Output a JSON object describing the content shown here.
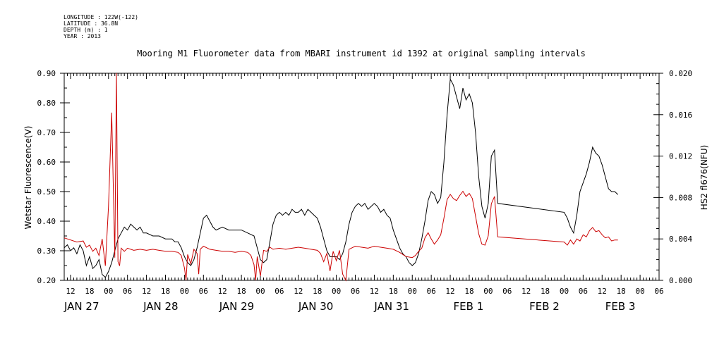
{
  "meta": {
    "longitude": "LONGITUDE : 122W(-122)",
    "latitude": "LATITUDE : 36.8N",
    "depth": "DEPTH (m) : 1",
    "year": "YEAR : 2013"
  },
  "colors": {
    "series1": "#000000",
    "series2": "#cc0000",
    "axis": "#000000"
  },
  "chart_data": {
    "type": "line",
    "title": "Mooring M1 Fluorometer data from MBARI instrument id 1392 at original sampling intervals",
    "ylabel": "Wetstar Fluorescence(V)",
    "y2label": "HS2 fl676(NFU)",
    "xlim": [
      10,
      198
    ],
    "ylim": [
      0.2,
      0.9
    ],
    "y2lim": [
      0.0,
      0.02
    ],
    "x_units": "hours since JAN 27 00:00, 2013",
    "xtick_hours": [
      12,
      18,
      24,
      30,
      36,
      42,
      48,
      54,
      60,
      66,
      72,
      78,
      84,
      90,
      96,
      102,
      108,
      114,
      120,
      126,
      132,
      138,
      144,
      150,
      156,
      162,
      168,
      174,
      180,
      186,
      192,
      198
    ],
    "xtick_labels": [
      "12",
      "18",
      "00",
      "06",
      "12",
      "18",
      "00",
      "06",
      "12",
      "18",
      "00",
      "06",
      "12",
      "18",
      "00",
      "06",
      "12",
      "18",
      "00",
      "06",
      "12",
      "18",
      "00",
      "06",
      "12",
      "18",
      "00",
      "06",
      "12",
      "18",
      "00",
      "06"
    ],
    "ytick_labels": [
      "0.20",
      "0.30",
      "0.40",
      "0.50",
      "0.60",
      "0.70",
      "0.80",
      "0.90"
    ],
    "y2tick_labels": [
      "0.000",
      "0.004",
      "0.008",
      "0.012",
      "0.016",
      "0.020"
    ],
    "date_labels": [
      {
        "label": "JAN 27",
        "hour": 10
      },
      {
        "label": "JAN 28",
        "hour": 35
      },
      {
        "label": "JAN 29",
        "hour": 59
      },
      {
        "label": "JAN 30",
        "hour": 84
      },
      {
        "label": "JAN 31",
        "hour": 108
      },
      {
        "label": "FEB 1",
        "hour": 133
      },
      {
        "label": "FEB 2",
        "hour": 157
      },
      {
        "label": "FEB 3",
        "hour": 181
      }
    ],
    "series": [
      {
        "axis": "left",
        "points": [
          [
            10,
            0.31
          ],
          [
            11,
            0.32
          ],
          [
            12,
            0.3
          ],
          [
            13,
            0.31
          ],
          [
            14,
            0.29
          ],
          [
            15,
            0.32
          ],
          [
            16,
            0.3
          ],
          [
            17,
            0.25
          ],
          [
            18,
            0.28
          ],
          [
            19,
            0.24
          ],
          [
            20,
            0.25
          ],
          [
            21,
            0.27
          ],
          [
            22,
            0.22
          ],
          [
            23,
            0.21
          ],
          [
            24,
            0.23
          ],
          [
            25,
            0.26
          ],
          [
            26,
            0.3
          ],
          [
            27,
            0.34
          ],
          [
            28,
            0.36
          ],
          [
            29,
            0.38
          ],
          [
            30,
            0.37
          ],
          [
            31,
            0.39
          ],
          [
            32,
            0.38
          ],
          [
            33,
            0.37
          ],
          [
            34,
            0.38
          ],
          [
            35,
            0.36
          ],
          [
            36,
            0.36
          ],
          [
            38,
            0.35
          ],
          [
            40,
            0.35
          ],
          [
            42,
            0.34
          ],
          [
            44,
            0.34
          ],
          [
            45,
            0.33
          ],
          [
            46,
            0.33
          ],
          [
            47,
            0.31
          ],
          [
            48,
            0.28
          ],
          [
            49,
            0.26
          ],
          [
            50,
            0.25
          ],
          [
            51,
            0.27
          ],
          [
            52,
            0.31
          ],
          [
            53,
            0.36
          ],
          [
            54,
            0.41
          ],
          [
            55,
            0.42
          ],
          [
            56,
            0.4
          ],
          [
            57,
            0.38
          ],
          [
            58,
            0.37
          ],
          [
            60,
            0.38
          ],
          [
            62,
            0.37
          ],
          [
            64,
            0.37
          ],
          [
            66,
            0.37
          ],
          [
            68,
            0.36
          ],
          [
            70,
            0.35
          ],
          [
            71,
            0.31
          ],
          [
            72,
            0.27
          ],
          [
            73,
            0.26
          ],
          [
            74,
            0.27
          ],
          [
            75,
            0.33
          ],
          [
            76,
            0.39
          ],
          [
            77,
            0.42
          ],
          [
            78,
            0.43
          ],
          [
            79,
            0.42
          ],
          [
            80,
            0.43
          ],
          [
            81,
            0.42
          ],
          [
            82,
            0.44
          ],
          [
            83,
            0.43
          ],
          [
            84,
            0.43
          ],
          [
            85,
            0.44
          ],
          [
            86,
            0.42
          ],
          [
            87,
            0.44
          ],
          [
            88,
            0.43
          ],
          [
            89,
            0.42
          ],
          [
            90,
            0.41
          ],
          [
            91,
            0.38
          ],
          [
            92,
            0.34
          ],
          [
            93,
            0.3
          ],
          [
            94,
            0.28
          ],
          [
            96,
            0.28
          ],
          [
            97,
            0.27
          ],
          [
            98,
            0.29
          ],
          [
            99,
            0.33
          ],
          [
            100,
            0.39
          ],
          [
            101,
            0.43
          ],
          [
            102,
            0.45
          ],
          [
            103,
            0.46
          ],
          [
            104,
            0.45
          ],
          [
            105,
            0.46
          ],
          [
            106,
            0.44
          ],
          [
            107,
            0.45
          ],
          [
            108,
            0.46
          ],
          [
            109,
            0.45
          ],
          [
            110,
            0.43
          ],
          [
            111,
            0.44
          ],
          [
            112,
            0.42
          ],
          [
            113,
            0.41
          ],
          [
            114,
            0.37
          ],
          [
            115,
            0.34
          ],
          [
            116,
            0.31
          ],
          [
            117,
            0.29
          ],
          [
            118,
            0.28
          ],
          [
            119,
            0.26
          ],
          [
            120,
            0.25
          ],
          [
            121,
            0.26
          ],
          [
            122,
            0.29
          ],
          [
            123,
            0.34
          ],
          [
            124,
            0.4
          ],
          [
            125,
            0.47
          ],
          [
            126,
            0.5
          ],
          [
            127,
            0.49
          ],
          [
            128,
            0.46
          ],
          [
            129,
            0.48
          ],
          [
            130,
            0.6
          ],
          [
            131,
            0.76
          ],
          [
            132,
            0.88
          ],
          [
            133,
            0.86
          ],
          [
            134,
            0.82
          ],
          [
            135,
            0.78
          ],
          [
            136,
            0.85
          ],
          [
            137,
            0.81
          ],
          [
            138,
            0.83
          ],
          [
            139,
            0.8
          ],
          [
            140,
            0.7
          ],
          [
            141,
            0.55
          ],
          [
            142,
            0.45
          ],
          [
            143,
            0.41
          ],
          [
            144,
            0.46
          ],
          [
            145,
            0.62
          ],
          [
            146,
            0.64
          ],
          [
            147,
            0.46
          ],
          [
            168,
            0.43
          ],
          [
            169,
            0.41
          ],
          [
            170,
            0.38
          ],
          [
            171,
            0.36
          ],
          [
            172,
            0.42
          ],
          [
            173,
            0.5
          ],
          [
            174,
            0.53
          ],
          [
            175,
            0.56
          ],
          [
            176,
            0.6
          ],
          [
            177,
            0.65
          ],
          [
            178,
            0.63
          ],
          [
            179,
            0.62
          ],
          [
            180,
            0.59
          ],
          [
            181,
            0.55
          ],
          [
            182,
            0.51
          ],
          [
            183,
            0.5
          ],
          [
            184,
            0.5
          ],
          [
            185,
            0.49
          ]
        ]
      },
      {
        "axis": "right",
        "points": [
          [
            10,
            0.0041
          ],
          [
            12,
            0.0039
          ],
          [
            14,
            0.0037
          ],
          [
            16,
            0.0038
          ],
          [
            17,
            0.0032
          ],
          [
            18,
            0.0034
          ],
          [
            19,
            0.0028
          ],
          [
            20,
            0.0031
          ],
          [
            21,
            0.0024
          ],
          [
            22,
            0.004
          ],
          [
            23,
            0.0014
          ],
          [
            24,
            0.0072
          ],
          [
            25,
            0.0162
          ],
          [
            26,
            0.0022
          ],
          [
            26.5,
            0.0205
          ],
          [
            27,
            0.0018
          ],
          [
            27.5,
            0.0014
          ],
          [
            28,
            0.0031
          ],
          [
            29,
            0.0028
          ],
          [
            30,
            0.0031
          ],
          [
            32,
            0.0029
          ],
          [
            34,
            0.003
          ],
          [
            36,
            0.0029
          ],
          [
            38,
            0.003
          ],
          [
            40,
            0.0029
          ],
          [
            42,
            0.0028
          ],
          [
            44,
            0.0028
          ],
          [
            46,
            0.0027
          ],
          [
            47,
            0.0024
          ],
          [
            48,
            0.0012
          ],
          [
            48.5,
            0.0
          ],
          [
            49,
            0.0025
          ],
          [
            50,
            0.0016
          ],
          [
            51,
            0.003
          ],
          [
            52,
            0.0026
          ],
          [
            52.5,
            0.0006
          ],
          [
            53,
            0.003
          ],
          [
            54,
            0.0033
          ],
          [
            56,
            0.003
          ],
          [
            58,
            0.0029
          ],
          [
            60,
            0.0028
          ],
          [
            62,
            0.0028
          ],
          [
            64,
            0.0027
          ],
          [
            66,
            0.0028
          ],
          [
            68,
            0.0027
          ],
          [
            69,
            0.0024
          ],
          [
            70,
            0.0015
          ],
          [
            70.5,
            0.0
          ],
          [
            71,
            0.0023
          ],
          [
            72,
            0.0004
          ],
          [
            73,
            0.0029
          ],
          [
            74,
            0.0028
          ],
          [
            75,
            0.0032
          ],
          [
            76,
            0.003
          ],
          [
            78,
            0.0031
          ],
          [
            80,
            0.003
          ],
          [
            82,
            0.0031
          ],
          [
            84,
            0.0032
          ],
          [
            86,
            0.0031
          ],
          [
            88,
            0.003
          ],
          [
            90,
            0.0029
          ],
          [
            91,
            0.0026
          ],
          [
            92,
            0.0018
          ],
          [
            93,
            0.0026
          ],
          [
            94,
            0.0009
          ],
          [
            95,
            0.0028
          ],
          [
            96,
            0.0019
          ],
          [
            97,
            0.0029
          ],
          [
            98,
            0.0006
          ],
          [
            99,
            0.0
          ],
          [
            100,
            0.003
          ],
          [
            102,
            0.0033
          ],
          [
            104,
            0.0032
          ],
          [
            106,
            0.0031
          ],
          [
            108,
            0.0033
          ],
          [
            110,
            0.0032
          ],
          [
            112,
            0.0031
          ],
          [
            114,
            0.003
          ],
          [
            116,
            0.0027
          ],
          [
            118,
            0.0023
          ],
          [
            120,
            0.0022
          ],
          [
            121,
            0.0024
          ],
          [
            122,
            0.0028
          ],
          [
            123,
            0.0031
          ],
          [
            124,
            0.0041
          ],
          [
            125,
            0.0046
          ],
          [
            126,
            0.004
          ],
          [
            127,
            0.0035
          ],
          [
            128,
            0.0039
          ],
          [
            129,
            0.0044
          ],
          [
            130,
            0.006
          ],
          [
            131,
            0.0078
          ],
          [
            132,
            0.0083
          ],
          [
            133,
            0.0079
          ],
          [
            134,
            0.0077
          ],
          [
            135,
            0.0082
          ],
          [
            136,
            0.0086
          ],
          [
            137,
            0.0081
          ],
          [
            138,
            0.0084
          ],
          [
            139,
            0.0079
          ],
          [
            140,
            0.0062
          ],
          [
            141,
            0.0045
          ],
          [
            142,
            0.0035
          ],
          [
            143,
            0.0034
          ],
          [
            144,
            0.0043
          ],
          [
            145,
            0.0074
          ],
          [
            146,
            0.0081
          ],
          [
            147,
            0.0042
          ],
          [
            168,
            0.0037
          ],
          [
            169,
            0.0034
          ],
          [
            170,
            0.0039
          ],
          [
            171,
            0.0035
          ],
          [
            172,
            0.004
          ],
          [
            173,
            0.0038
          ],
          [
            174,
            0.0044
          ],
          [
            175,
            0.0042
          ],
          [
            176,
            0.0048
          ],
          [
            177,
            0.0051
          ],
          [
            178,
            0.0047
          ],
          [
            179,
            0.0048
          ],
          [
            180,
            0.0044
          ],
          [
            181,
            0.0041
          ],
          [
            182,
            0.0042
          ],
          [
            183,
            0.0038
          ],
          [
            184,
            0.0039
          ],
          [
            185,
            0.0039
          ]
        ]
      }
    ]
  }
}
